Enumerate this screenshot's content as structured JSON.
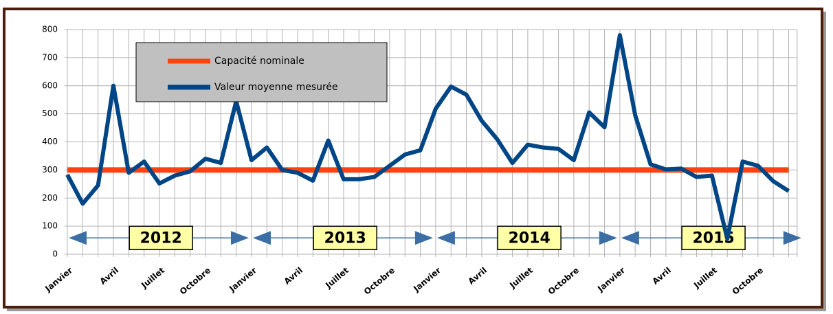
{
  "chart_data": {
    "type": "line",
    "categories": [
      "Janvier",
      null,
      null,
      "Avril",
      null,
      null,
      "Juillet",
      null,
      null,
      "Octobre",
      null,
      null,
      "Janvier",
      null,
      null,
      "Avril",
      null,
      null,
      "Juillet",
      null,
      null,
      "Octobre",
      null,
      null,
      "Janvier",
      null,
      null,
      "Avril",
      null,
      null,
      "Juillet",
      null,
      null,
      "Octobre",
      null,
      null,
      "Janvier",
      null,
      null,
      "Avril",
      null,
      null,
      "Juillet",
      null,
      null,
      "Octobre",
      null,
      null
    ],
    "series": [
      {
        "name": "Capacité nominale",
        "color": "#ff420e",
        "values": [
          300,
          300,
          300,
          300,
          300,
          300,
          300,
          300,
          300,
          300,
          300,
          300,
          300,
          300,
          300,
          300,
          300,
          300,
          300,
          300,
          300,
          300,
          300,
          300,
          300,
          300,
          300,
          300,
          300,
          300,
          300,
          300,
          300,
          300,
          300,
          300,
          300,
          300,
          300,
          300,
          300,
          300,
          300,
          300,
          300,
          300,
          300,
          300
        ]
      },
      {
        "name": "Valeur moyenne mesurée",
        "color": "#004586",
        "values": [
          283,
          180,
          245,
          600,
          290,
          330,
          252,
          280,
          295,
          340,
          325,
          545,
          335,
          380,
          300,
          290,
          262,
          405,
          267,
          267,
          275,
          315,
          355,
          370,
          518,
          597,
          568,
          475,
          410,
          325,
          390,
          380,
          375,
          335,
          505,
          452,
          780,
          495,
          320,
          302,
          305,
          275,
          280,
          55,
          330,
          315,
          260,
          225
        ]
      }
    ],
    "annotations": [
      "2012",
      "2013",
      "2014",
      "2015"
    ],
    "ylim": [
      0,
      800
    ],
    "yticks": [
      0,
      100,
      200,
      300,
      400,
      500,
      600,
      700,
      800
    ],
    "grid": true
  }
}
